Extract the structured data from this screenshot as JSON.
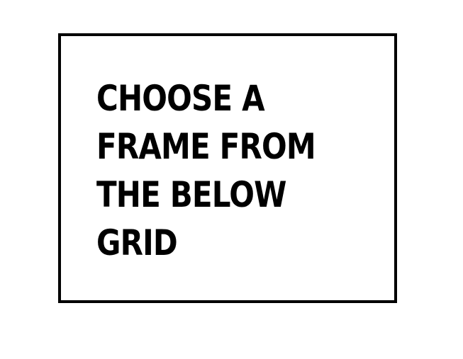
{
  "prompt": {
    "lines": [
      "CHOOSE A",
      "FRAME FROM",
      "THE BELOW",
      "GRID"
    ]
  },
  "colors": {
    "border": "#000000",
    "text": "#000000",
    "background": "#ffffff"
  }
}
